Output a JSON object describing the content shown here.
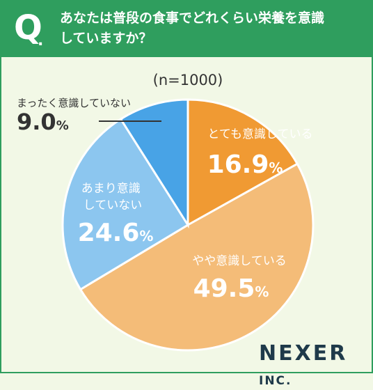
{
  "header": {
    "q_mark": "Q",
    "q_dot": ".",
    "question_line1": "あなたは普段の食事でどれくらい栄養を意識",
    "question_line2": "していますか？"
  },
  "colors": {
    "header_bg": "#2f9e5e",
    "background": "#f2f8e6"
  },
  "chart_data": {
    "type": "pie",
    "subtitle": "(n=1000)",
    "unit": "%",
    "slices": [
      {
        "label": "とても意識している",
        "value": 16.9,
        "value_text": "16.9",
        "color": "#f09a33",
        "text_color": "#ffffff"
      },
      {
        "label": "やや意識している",
        "value": 49.5,
        "value_text": "49.5",
        "color": "#f4bc78",
        "text_color": "#ffffff"
      },
      {
        "label": "あまり意識していない",
        "value": 24.6,
        "value_text": "24.6",
        "color": "#8cc6ef",
        "text_color": "#ffffff"
      },
      {
        "label": "まったく意識していない",
        "value": 9.0,
        "value_text": "9.0",
        "color": "#48a3e6",
        "text_color": "#333333"
      }
    ]
  },
  "logo": {
    "name": "NEXER",
    "suffix": "INC."
  }
}
